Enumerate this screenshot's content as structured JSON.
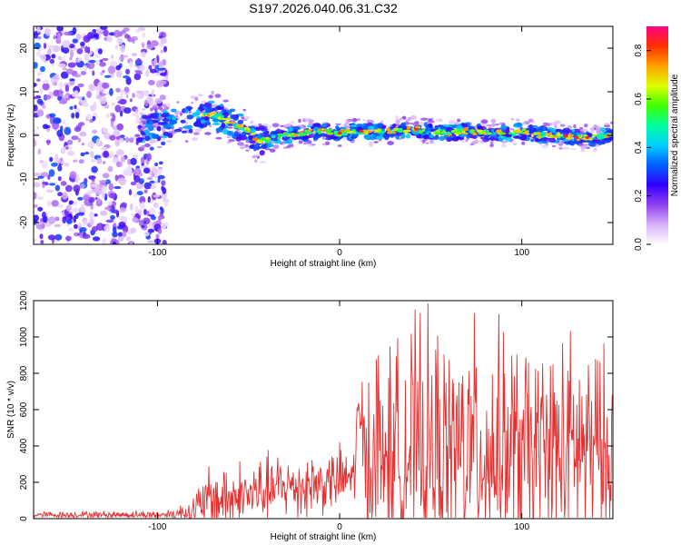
{
  "title": "S197.2026.040.06.31.C32",
  "chart_data": [
    {
      "type": "heatmap",
      "name": "spectrogram",
      "xlabel": "Height of straight line (km)",
      "ylabel": "Frequency (Hz)",
      "xlim": [
        -168,
        150
      ],
      "ylim": [
        -25,
        25
      ],
      "xticks": [
        "-100",
        "0",
        "100"
      ],
      "yticks": [
        "20",
        "10",
        "0",
        "-10",
        "-20"
      ],
      "ytick_values": [
        20,
        10,
        0,
        -10,
        -20
      ],
      "xtick_values": [
        -100,
        0,
        100
      ],
      "signal_track": {
        "x": [
          -110,
          -100,
          -90,
          -80,
          -70,
          -60,
          -50,
          -45,
          -40,
          -30,
          -20,
          -10,
          0,
          10,
          20,
          30,
          40,
          50,
          60,
          70,
          80,
          90,
          100,
          110,
          120,
          130,
          140,
          150
        ],
        "freq": [
          1.5,
          2,
          3,
          4,
          5,
          3,
          1,
          -1.5,
          -1,
          0,
          0.5,
          1,
          0.5,
          1,
          0.8,
          1,
          1.5,
          1,
          0.5,
          1,
          0.5,
          0.5,
          1,
          0,
          0,
          -0.5,
          -0.5,
          0
        ]
      },
      "noise_region_x": [
        -168,
        -95
      ],
      "colorbar": {
        "label": "Normalized spectral amplitude",
        "range": [
          0,
          0.9
        ],
        "ticks": [
          "0.0",
          "0.2",
          "0.4",
          "0.6",
          "0.8"
        ],
        "tick_values": [
          0,
          0.2,
          0.4,
          0.6,
          0.8
        ],
        "colors": [
          "#ffffff",
          "#d8b0f8",
          "#9040f0",
          "#3000ff",
          "#0060ff",
          "#00d0ff",
          "#00ffa0",
          "#40ff00",
          "#e0ff00",
          "#ffa000",
          "#ff3000",
          "#ff0080"
        ]
      }
    },
    {
      "type": "line",
      "name": "snr",
      "xlabel": "Height of straight line (km)",
      "ylabel": "SNR (10 * v/v)",
      "xlim": [
        -168,
        150
      ],
      "ylim": [
        0,
        1200
      ],
      "xticks": [
        "-100",
        "0",
        "100"
      ],
      "xtick_values": [
        -100,
        0,
        100
      ],
      "yticks": [
        "0",
        "200",
        "400",
        "600",
        "800",
        "1000",
        "1200"
      ],
      "ytick_values": [
        0,
        200,
        400,
        600,
        800,
        1000,
        1200
      ],
      "color": "#e53030",
      "envelope": {
        "x": [
          -168,
          -100,
          -90,
          -80,
          -70,
          -60,
          -50,
          -40,
          -30,
          -20,
          -10,
          0,
          8,
          10,
          15,
          20,
          30,
          40,
          60,
          80,
          100,
          120,
          140,
          150
        ],
        "base": [
          20,
          20,
          25,
          40,
          80,
          100,
          120,
          140,
          160,
          170,
          180,
          200,
          220,
          560,
          300,
          300,
          320,
          330,
          320,
          330,
          320,
          320,
          330,
          350
        ],
        "amplitude": [
          15,
          20,
          30,
          80,
          200,
          180,
          150,
          170,
          150,
          180,
          150,
          160,
          150,
          180,
          400,
          550,
          500,
          600,
          550,
          600,
          500,
          550,
          500,
          400
        ]
      },
      "n_points": 900
    }
  ]
}
